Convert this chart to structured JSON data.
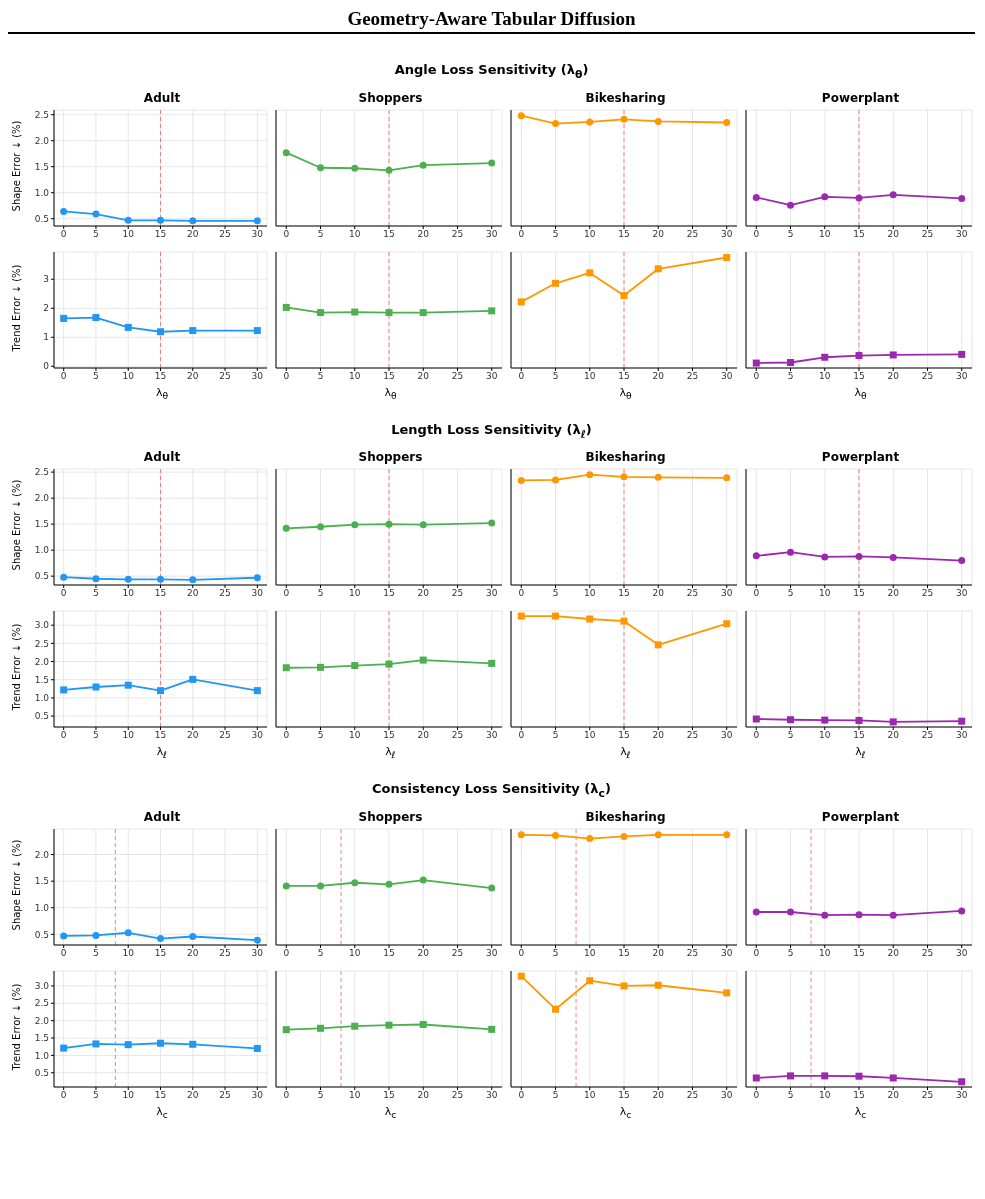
{
  "chart_data": [
    {
      "type": "line",
      "title": "Adult",
      "annotations": [
        "Geometry-Aware Tabular Diffusion",
        "Angle Loss Sensitivity (λ$_{θ}$)"
      ],
      "ylabel": "Shape Error ↓ (%)",
      "x": [
        0,
        5,
        10,
        15,
        20,
        30
      ],
      "series": [
        {
          "color": "#2196f3",
          "values": [
            0.64,
            0.59,
            0.47,
            0.47,
            0.46,
            0.46
          ]
        }
      ],
      "xlim": [
        -1.5,
        31.5
      ],
      "xticks": [
        0,
        5,
        10,
        15,
        20,
        25,
        30
      ],
      "ylim": [
        0.36,
        2.59
      ],
      "yticks": [
        0.5,
        {
          "value": 1,
          "label": "1.0"
        },
        1.5,
        {
          "value": 2,
          "label": "2.0"
        },
        2.5
      ],
      "grid": true,
      "marker": "circle",
      "ref_lines": [
        {
          "axis": "x",
          "value": 15,
          "color": "#f08080",
          "line_style": "dashed"
        }
      ]
    },
    {
      "type": "line",
      "title": "Shoppers",
      "x": [
        0,
        5,
        10,
        15,
        20,
        30
      ],
      "series": [
        {
          "color": "#4caf50",
          "values": [
            1.77,
            1.48,
            1.47,
            1.43,
            1.53,
            1.57
          ]
        }
      ],
      "xlim": [
        -1.5,
        31.5
      ],
      "xticks": [
        0,
        5,
        10,
        15,
        20,
        25,
        30
      ],
      "ylim": [
        0.36,
        2.59
      ],
      "yticks": [
        0.5,
        1,
        1.5,
        2,
        2.5
      ],
      "grid": true,
      "marker": "circle",
      "tick_labels": "x",
      "ref_lines": [
        {
          "axis": "x",
          "value": 15,
          "color": "#f08080",
          "line_style": "dashed"
        }
      ]
    },
    {
      "type": "line",
      "title": "Bikesharing",
      "x": [
        0,
        5,
        10,
        15,
        20,
        30
      ],
      "series": [
        {
          "color": "#ff9800",
          "values": [
            2.48,
            2.33,
            2.36,
            2.41,
            2.37,
            2.35
          ]
        }
      ],
      "xlim": [
        -1.5,
        31.5
      ],
      "xticks": [
        0,
        5,
        10,
        15,
        20,
        25,
        30
      ],
      "ylim": [
        0.36,
        2.59
      ],
      "yticks": [
        0.5,
        1,
        1.5,
        2,
        2.5
      ],
      "grid": true,
      "marker": "circle",
      "tick_labels": "x",
      "ref_lines": [
        {
          "axis": "x",
          "value": 15,
          "color": "#f08080",
          "line_style": "dashed"
        }
      ]
    },
    {
      "type": "line",
      "title": "Powerplant",
      "x": [
        0,
        5,
        10,
        15,
        20,
        30
      ],
      "series": [
        {
          "color": "#9c27b0",
          "values": [
            0.91,
            0.76,
            0.92,
            0.9,
            0.96,
            0.89
          ]
        }
      ],
      "xlim": [
        -1.5,
        31.5
      ],
      "xticks": [
        0,
        5,
        10,
        15,
        20,
        25,
        30
      ],
      "ylim": [
        0.36,
        2.59
      ],
      "yticks": [
        0.5,
        1,
        1.5,
        2,
        2.5
      ],
      "grid": true,
      "marker": "circle",
      "tick_labels": "x",
      "ref_lines": [
        {
          "axis": "x",
          "value": 15,
          "color": "#f08080",
          "line_style": "dashed"
        }
      ]
    },
    {
      "type": "line",
      "xlabel": "λ$_{θ}$",
      "ylabel": "Trend Error ↓ (%)",
      "x": [
        0,
        5,
        10,
        15,
        20,
        30
      ],
      "series": [
        {
          "color": "#2196f3",
          "values": [
            1.65,
            1.68,
            1.34,
            1.19,
            1.23,
            1.23
          ]
        }
      ],
      "xlim": [
        -1.5,
        31.5
      ],
      "xticks": [
        0,
        5,
        10,
        15,
        20,
        25,
        30
      ],
      "ylim": [
        -0.06,
        3.94
      ],
      "yticks": [
        0,
        1,
        2,
        3
      ],
      "grid": true,
      "marker": "square",
      "ref_lines": [
        {
          "axis": "x",
          "value": 15,
          "color": "#f08080",
          "line_style": "dashed"
        }
      ]
    },
    {
      "type": "line",
      "xlabel": "λ$_{θ}$",
      "x": [
        0,
        5,
        10,
        15,
        20,
        30
      ],
      "series": [
        {
          "color": "#4caf50",
          "values": [
            2.03,
            1.85,
            1.87,
            1.85,
            1.85,
            1.91
          ]
        }
      ],
      "xlim": [
        -1.5,
        31.5
      ],
      "xticks": [
        0,
        5,
        10,
        15,
        20,
        25,
        30
      ],
      "ylim": [
        -0.06,
        3.94
      ],
      "yticks": [
        0,
        1,
        2,
        3
      ],
      "grid": true,
      "marker": "square",
      "tick_labels": "x",
      "ref_lines": [
        {
          "axis": "x",
          "value": 15,
          "color": "#f08080",
          "line_style": "dashed"
        }
      ]
    },
    {
      "type": "line",
      "xlabel": "λ$_{θ}$",
      "x": [
        0,
        5,
        10,
        15,
        20,
        30
      ],
      "series": [
        {
          "color": "#ff9800",
          "values": [
            2.22,
            2.86,
            3.22,
            2.44,
            3.36,
            3.75
          ]
        }
      ],
      "xlim": [
        -1.5,
        31.5
      ],
      "xticks": [
        0,
        5,
        10,
        15,
        20,
        25,
        30
      ],
      "ylim": [
        -0.06,
        3.94
      ],
      "yticks": [
        0,
        1,
        2,
        3
      ],
      "grid": true,
      "marker": "square",
      "tick_labels": "x",
      "ref_lines": [
        {
          "axis": "x",
          "value": 15,
          "color": "#f08080",
          "line_style": "dashed"
        }
      ]
    },
    {
      "type": "line",
      "xlabel": "λ$_{θ}$",
      "x": [
        0,
        5,
        10,
        15,
        20,
        30
      ],
      "series": [
        {
          "color": "#9c27b0",
          "values": [
            0.11,
            0.13,
            0.31,
            0.37,
            0.39,
            0.41
          ]
        }
      ],
      "xlim": [
        -1.5,
        31.5
      ],
      "xticks": [
        0,
        5,
        10,
        15,
        20,
        25,
        30
      ],
      "ylim": [
        -0.06,
        3.94
      ],
      "yticks": [
        0,
        1,
        2,
        3
      ],
      "grid": true,
      "marker": "square",
      "tick_labels": "x",
      "ref_lines": [
        {
          "axis": "x",
          "value": 15,
          "color": "#f08080",
          "line_style": "dashed"
        }
      ]
    },
    {
      "type": "line",
      "title": "Adult",
      "annotations": [
        "Length Loss Sensitivity (λ$_{ℓ}$)"
      ],
      "ylabel": "Shape Error ↓ (%)",
      "x": [
        0,
        5,
        10,
        15,
        20,
        30
      ],
      "series": [
        {
          "color": "#2196f3",
          "values": [
            0.48,
            0.45,
            0.44,
            0.44,
            0.43,
            0.47
          ]
        }
      ],
      "xlim": [
        -1.5,
        31.5
      ],
      "xticks": [
        0,
        5,
        10,
        15,
        20,
        25,
        30
      ],
      "ylim": [
        0.33,
        2.56
      ],
      "yticks": [
        0.5,
        {
          "value": 1,
          "label": "1.0"
        },
        1.5,
        {
          "value": 2,
          "label": "2.0"
        },
        2.5
      ],
      "grid": true,
      "marker": "circle",
      "ref_lines": [
        {
          "axis": "x",
          "value": 15,
          "color": "#f08080",
          "line_style": "dashed"
        }
      ]
    },
    {
      "type": "line",
      "title": "Shoppers",
      "x": [
        0,
        5,
        10,
        15,
        20,
        30
      ],
      "series": [
        {
          "color": "#4caf50",
          "values": [
            1.42,
            1.45,
            1.49,
            1.5,
            1.49,
            1.52
          ]
        }
      ],
      "xlim": [
        -1.5,
        31.5
      ],
      "xticks": [
        0,
        5,
        10,
        15,
        20,
        25,
        30
      ],
      "ylim": [
        0.33,
        2.56
      ],
      "yticks": [
        0.5,
        1,
        1.5,
        2,
        2.5
      ],
      "grid": true,
      "marker": "circle",
      "tick_labels": "x",
      "ref_lines": [
        {
          "axis": "x",
          "value": 15,
          "color": "#f08080",
          "line_style": "dashed"
        }
      ]
    },
    {
      "type": "line",
      "title": "Bikesharing",
      "x": [
        0,
        5,
        10,
        15,
        20,
        30
      ],
      "series": [
        {
          "color": "#ff9800",
          "values": [
            2.34,
            2.35,
            2.45,
            2.41,
            2.4,
            2.39
          ]
        }
      ],
      "xlim": [
        -1.5,
        31.5
      ],
      "xticks": [
        0,
        5,
        10,
        15,
        20,
        25,
        30
      ],
      "ylim": [
        0.33,
        2.56
      ],
      "yticks": [
        0.5,
        1,
        1.5,
        2,
        2.5
      ],
      "grid": true,
      "marker": "circle",
      "tick_labels": "x",
      "ref_lines": [
        {
          "axis": "x",
          "value": 15,
          "color": "#f08080",
          "line_style": "dashed"
        }
      ]
    },
    {
      "type": "line",
      "title": "Powerplant",
      "x": [
        0,
        5,
        10,
        15,
        20,
        30
      ],
      "series": [
        {
          "color": "#9c27b0",
          "values": [
            0.89,
            0.96,
            0.87,
            0.88,
            0.86,
            0.8
          ]
        }
      ],
      "xlim": [
        -1.5,
        31.5
      ],
      "xticks": [
        0,
        5,
        10,
        15,
        20,
        25,
        30
      ],
      "ylim": [
        0.33,
        2.56
      ],
      "yticks": [
        0.5,
        1,
        1.5,
        2,
        2.5
      ],
      "grid": true,
      "marker": "circle",
      "tick_labels": "x",
      "ref_lines": [
        {
          "axis": "x",
          "value": 15,
          "color": "#f08080",
          "line_style": "dashed"
        }
      ]
    },
    {
      "type": "line",
      "xlabel": "λ$_{ℓ}$",
      "ylabel": "Trend Error ↓ (%)",
      "x": [
        0,
        5,
        10,
        15,
        20,
        30
      ],
      "series": [
        {
          "color": "#2196f3",
          "values": [
            1.22,
            1.3,
            1.35,
            1.2,
            1.51,
            1.2
          ]
        }
      ],
      "xlim": [
        -1.5,
        31.5
      ],
      "xticks": [
        0,
        5,
        10,
        15,
        20,
        25,
        30
      ],
      "ylim": [
        0.2,
        3.39
      ],
      "yticks": [
        0.5,
        {
          "value": 1,
          "label": "1.0"
        },
        1.5,
        {
          "value": 2,
          "label": "2.0"
        },
        2.5,
        {
          "value": 3,
          "label": "3.0"
        }
      ],
      "grid": true,
      "marker": "square",
      "ref_lines": [
        {
          "axis": "x",
          "value": 15,
          "color": "#f08080",
          "line_style": "dashed"
        }
      ]
    },
    {
      "type": "line",
      "xlabel": "λ$_{ℓ}$",
      "x": [
        0,
        5,
        10,
        15,
        20,
        30
      ],
      "series": [
        {
          "color": "#4caf50",
          "values": [
            1.83,
            1.84,
            1.89,
            1.93,
            2.04,
            1.95
          ]
        }
      ],
      "xlim": [
        -1.5,
        31.5
      ],
      "xticks": [
        0,
        5,
        10,
        15,
        20,
        25,
        30
      ],
      "ylim": [
        0.2,
        3.39
      ],
      "yticks": [
        0.5,
        1,
        1.5,
        2,
        2.5,
        3
      ],
      "grid": true,
      "marker": "square",
      "tick_labels": "x",
      "ref_lines": [
        {
          "axis": "x",
          "value": 15,
          "color": "#f08080",
          "line_style": "dashed"
        }
      ]
    },
    {
      "type": "line",
      "xlabel": "λ$_{ℓ}$",
      "x": [
        0,
        5,
        10,
        15,
        20,
        30
      ],
      "series": [
        {
          "color": "#ff9800",
          "values": [
            3.25,
            3.25,
            3.17,
            3.11,
            2.46,
            3.04
          ]
        }
      ],
      "xlim": [
        -1.5,
        31.5
      ],
      "xticks": [
        0,
        5,
        10,
        15,
        20,
        25,
        30
      ],
      "ylim": [
        0.2,
        3.39
      ],
      "yticks": [
        0.5,
        1,
        1.5,
        2,
        2.5,
        3
      ],
      "grid": true,
      "marker": "square",
      "tick_labels": "x",
      "ref_lines": [
        {
          "axis": "x",
          "value": 15,
          "color": "#f08080",
          "line_style": "dashed"
        }
      ]
    },
    {
      "type": "line",
      "xlabel": "λ$_{ℓ}$",
      "x": [
        0,
        5,
        10,
        15,
        20,
        30
      ],
      "series": [
        {
          "color": "#9c27b0",
          "values": [
            0.42,
            0.4,
            0.39,
            0.38,
            0.34,
            0.36
          ]
        }
      ],
      "xlim": [
        -1.5,
        31.5
      ],
      "xticks": [
        0,
        5,
        10,
        15,
        20,
        25,
        30
      ],
      "ylim": [
        0.2,
        3.39
      ],
      "yticks": [
        0.5,
        1,
        1.5,
        2,
        2.5,
        3
      ],
      "grid": true,
      "marker": "square",
      "tick_labels": "x",
      "ref_lines": [
        {
          "axis": "x",
          "value": 15,
          "color": "#f08080",
          "line_style": "dashed"
        }
      ]
    },
    {
      "type": "line",
      "title": "Adult",
      "annotations": [
        "Consistency Loss Sensitivity (λ$_{c}$)"
      ],
      "ylabel": "Shape Error ↓ (%)",
      "x": [
        0,
        5,
        10,
        15,
        20,
        30
      ],
      "series": [
        {
          "color": "#2196f3",
          "values": [
            0.47,
            0.48,
            0.53,
            0.42,
            0.46,
            0.39
          ]
        }
      ],
      "xlim": [
        -1.5,
        31.5
      ],
      "xticks": [
        0,
        5,
        10,
        15,
        20,
        25,
        30
      ],
      "ylim": [
        0.3,
        2.48
      ],
      "yticks": [
        0.5,
        {
          "value": 1,
          "label": "1.0"
        },
        1.5,
        {
          "value": 2,
          "label": "2.0"
        }
      ],
      "grid": true,
      "marker": "circle",
      "ref_lines": [
        {
          "axis": "x",
          "value": 8,
          "color": "#f08080",
          "line_style": "dashed"
        }
      ]
    },
    {
      "type": "line",
      "title": "Shoppers",
      "x": [
        0,
        5,
        10,
        15,
        20,
        30
      ],
      "series": [
        {
          "color": "#4caf50",
          "values": [
            1.41,
            1.41,
            1.47,
            1.44,
            1.52,
            1.37
          ]
        }
      ],
      "xlim": [
        -1.5,
        31.5
      ],
      "xticks": [
        0,
        5,
        10,
        15,
        20,
        25,
        30
      ],
      "ylim": [
        0.3,
        2.48
      ],
      "yticks": [
        0.5,
        1,
        1.5,
        2
      ],
      "grid": true,
      "marker": "circle",
      "tick_labels": "x",
      "ref_lines": [
        {
          "axis": "x",
          "value": 8,
          "color": "#f08080",
          "line_style": "dashed"
        }
      ]
    },
    {
      "type": "line",
      "title": "Bikesharing",
      "x": [
        0,
        5,
        10,
        15,
        20,
        30
      ],
      "series": [
        {
          "color": "#ff9800",
          "values": [
            2.37,
            2.36,
            2.3,
            2.34,
            2.37,
            2.37
          ]
        }
      ],
      "xlim": [
        -1.5,
        31.5
      ],
      "xticks": [
        0,
        5,
        10,
        15,
        20,
        25,
        30
      ],
      "ylim": [
        0.3,
        2.48
      ],
      "yticks": [
        0.5,
        1,
        1.5,
        2
      ],
      "grid": true,
      "marker": "circle",
      "tick_labels": "x",
      "ref_lines": [
        {
          "axis": "x",
          "value": 8,
          "color": "#f08080",
          "line_style": "dashed"
        }
      ]
    },
    {
      "type": "line",
      "title": "Powerplant",
      "x": [
        0,
        5,
        10,
        15,
        20,
        30
      ],
      "series": [
        {
          "color": "#9c27b0",
          "values": [
            0.92,
            0.92,
            0.86,
            0.87,
            0.86,
            0.94
          ]
        }
      ],
      "xlim": [
        -1.5,
        31.5
      ],
      "xticks": [
        0,
        5,
        10,
        15,
        20,
        25,
        30
      ],
      "ylim": [
        0.3,
        2.48
      ],
      "yticks": [
        0.5,
        1,
        1.5,
        2
      ],
      "grid": true,
      "marker": "circle",
      "tick_labels": "x",
      "ref_lines": [
        {
          "axis": "x",
          "value": 8,
          "color": "#f08080",
          "line_style": "dashed"
        }
      ]
    },
    {
      "type": "line",
      "xlabel": "λ$_{c}$",
      "ylabel": "Trend Error ↓ (%)",
      "x": [
        0,
        5,
        10,
        15,
        20,
        30
      ],
      "series": [
        {
          "color": "#2196f3",
          "values": [
            1.21,
            1.33,
            1.31,
            1.35,
            1.32,
            1.2
          ]
        }
      ],
      "xlim": [
        -1.5,
        31.5
      ],
      "xticks": [
        0,
        5,
        10,
        15,
        20,
        25,
        30
      ],
      "ylim": [
        0.09,
        3.43
      ],
      "yticks": [
        0.5,
        {
          "value": 1,
          "label": "1.0"
        },
        1.5,
        {
          "value": 2,
          "label": "2.0"
        },
        2.5,
        {
          "value": 3,
          "label": "3.0"
        }
      ],
      "grid": true,
      "marker": "square",
      "ref_lines": [
        {
          "axis": "x",
          "value": 8,
          "color": "#f08080",
          "line_style": "dashed"
        }
      ]
    },
    {
      "type": "line",
      "xlabel": "λ$_{c}$",
      "x": [
        0,
        5,
        10,
        15,
        20,
        30
      ],
      "series": [
        {
          "color": "#4caf50",
          "values": [
            1.74,
            1.78,
            1.84,
            1.87,
            1.89,
            1.75
          ]
        }
      ],
      "xlim": [
        -1.5,
        31.5
      ],
      "xticks": [
        0,
        5,
        10,
        15,
        20,
        25,
        30
      ],
      "ylim": [
        0.09,
        3.43
      ],
      "yticks": [
        0.5,
        1,
        1.5,
        2,
        2.5,
        3
      ],
      "grid": true,
      "marker": "square",
      "tick_labels": "x",
      "ref_lines": [
        {
          "axis": "x",
          "value": 8,
          "color": "#f08080",
          "line_style": "dashed"
        }
      ]
    },
    {
      "type": "line",
      "xlabel": "λ$_{c}$",
      "x": [
        0,
        5,
        10,
        15,
        20,
        30
      ],
      "series": [
        {
          "color": "#ff9800",
          "values": [
            3.28,
            2.33,
            3.15,
            3.0,
            3.02,
            2.8
          ]
        }
      ],
      "xlim": [
        -1.5,
        31.5
      ],
      "xticks": [
        0,
        5,
        10,
        15,
        20,
        25,
        30
      ],
      "ylim": [
        0.09,
        3.43
      ],
      "yticks": [
        0.5,
        1,
        1.5,
        2,
        2.5,
        3
      ],
      "grid": true,
      "marker": "square",
      "tick_labels": "x",
      "ref_lines": [
        {
          "axis": "x",
          "value": 8,
          "color": "#f08080",
          "line_style": "dashed"
        }
      ]
    },
    {
      "type": "line",
      "xlabel": "λ$_{c}$",
      "x": [
        0,
        5,
        10,
        15,
        20,
        30
      ],
      "series": [
        {
          "color": "#9c27b0",
          "values": [
            0.35,
            0.41,
            0.41,
            0.4,
            0.35,
            0.24
          ]
        }
      ],
      "xlim": [
        -1.5,
        31.5
      ],
      "xticks": [
        0,
        5,
        10,
        15,
        20,
        25,
        30
      ],
      "ylim": [
        0.09,
        3.43
      ],
      "yticks": [
        0.5,
        1,
        1.5,
        2,
        2.5,
        3
      ],
      "grid": true,
      "marker": "square",
      "tick_labels": "x",
      "ref_lines": [
        {
          "axis": "x",
          "value": 8,
          "color": "#f08080",
          "line_style": "dashed"
        }
      ]
    }
  ]
}
